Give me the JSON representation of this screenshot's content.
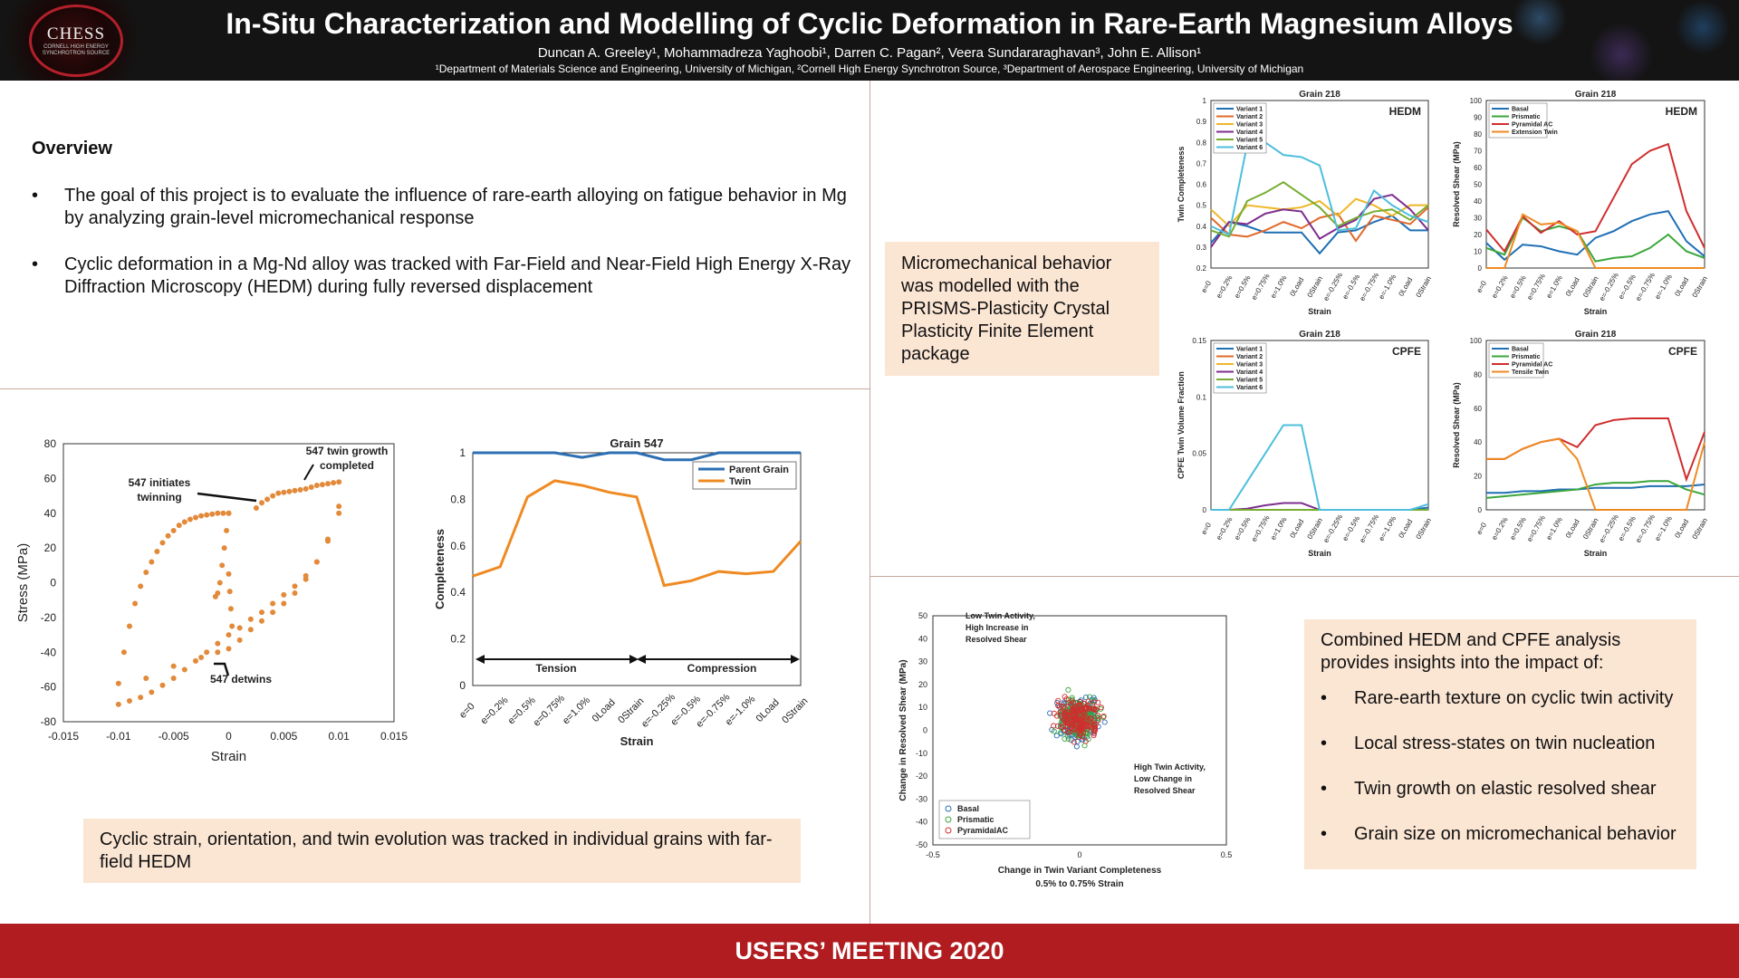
{
  "header": {
    "title": "In-Situ Characterization and Modelling of Cyclic Deformation in Rare-Earth Magnesium Alloys",
    "authors": "Duncan A. Greeley¹, Mohammadreza Yaghoobi¹, Darren C. Pagan², Veera Sundararaghavan³, John E. Allison¹",
    "affiliations": "¹Department of Materials Science and Engineering, University of Michigan, ²Cornell High Energy Synchrotron Source, ³Department of Aerospace Engineering, University of Michigan",
    "logo_name": "CHESS",
    "logo_sub": "CORNELL HIGH ENERGY SYNCHROTRON SOURCE"
  },
  "overview": {
    "title": "Overview",
    "bullets": [
      "The goal of this project is to evaluate the influence of rare-earth alloying on fatigue behavior in Mg by analyzing grain-level micromechanical response",
      "Cyclic deformation in a Mg-Nd alloy was tracked with Far-Field and Near-Field High Energy X-Ray Diffraction Microscopy (HEDM) during fully reversed displacement"
    ]
  },
  "box_hedm": "Cyclic strain, orientation, and twin evolution was tracked in individual grains with far-field HEDM",
  "box_cpfe": "Micromechanical behavior was modelled with the PRISMS-Plasticity Crystal Plasticity Finite Element package",
  "box_combined": {
    "intro": "Combined HEDM and CPFE analysis provides insights into the impact of:",
    "bullets": [
      "Rare-earth texture on cyclic twin activity",
      "Local stress-states on twin nucleation",
      "Twin growth on elastic resolved shear",
      "Grain size on micromechanical behavior"
    ]
  },
  "footer": "USERS’ MEETING 2020",
  "strain_labels": [
    "e=0",
    "e=0.2%",
    "e=0.5%",
    "e=0.75%",
    "e=1.0%",
    "0Load",
    "0Strain",
    "e=-0.25%",
    "e=-0.5%",
    "e=-0.75%",
    "e=-1.0%",
    "0Load",
    "0Strain"
  ],
  "chart_data": [
    {
      "type": "scatter",
      "xlabel": "Strain",
      "ylabel": "Stress (MPa)",
      "xlim": [
        -0.015,
        0.015
      ],
      "ylim": [
        -80,
        80
      ],
      "xticks": [
        "-0.015",
        "-0.01",
        "-0.005",
        "0",
        "0.005",
        "0.01",
        "0.015"
      ],
      "yticks": [
        "80",
        "60",
        "40",
        "20",
        "0",
        "-20",
        "-40",
        "-60",
        "-80"
      ],
      "annotations": [
        "547 twin growth completed",
        "547 initiates twinning",
        "547 detwins"
      ],
      "color": "#e28a3a",
      "series": [
        {
          "x": [
            -0.01,
            -0.0095,
            -0.009,
            -0.0085,
            -0.008,
            -0.0075,
            -0.007,
            -0.0065,
            -0.006,
            -0.0055,
            -0.005,
            -0.0045,
            -0.004,
            -0.0035,
            -0.003,
            -0.0025,
            -0.002,
            -0.0015,
            -0.001,
            -0.0005,
            0
          ],
          "y": [
            -58,
            -40,
            -25,
            -12,
            -2,
            6,
            12,
            18,
            23,
            27,
            30,
            33,
            35,
            36.5,
            37.5,
            38.5,
            39,
            39.5,
            40,
            40,
            40
          ]
        },
        {
          "x": [
            0,
            0.001,
            0.002,
            0.003,
            0.004,
            0.005,
            0.006,
            0.007,
            0.008,
            0.009,
            0.01
          ],
          "y": [
            -38,
            -33,
            -27,
            -22,
            -17,
            -12,
            -6,
            2,
            12,
            25,
            44
          ]
        },
        {
          "x": [
            0.0025,
            0.003,
            0.0035,
            0.004,
            0.0045,
            0.005,
            0.0055,
            0.006,
            0.0065,
            0.007,
            0.0075,
            0.008,
            0.0085,
            0.009,
            0.0095,
            0.01
          ],
          "y": [
            43,
            46,
            48,
            50,
            51.5,
            52,
            52.5,
            53,
            53.5,
            54,
            55,
            56,
            56.5,
            57,
            57.5,
            58
          ]
        },
        {
          "x": [
            0.01,
            0.009,
            0.008,
            0.007,
            0.006,
            0.005,
            0.004,
            0.003,
            0.002,
            0.001,
            0,
            -0.001,
            -0.002,
            -0.003,
            -0.004,
            -0.005,
            -0.006,
            -0.007,
            -0.008,
            -0.009,
            -0.01
          ],
          "y": [
            40,
            24,
            12,
            4,
            -2,
            -7,
            -12,
            -17,
            -21,
            -26,
            -30,
            -35,
            -40,
            -45,
            -50,
            -55,
            -59,
            -63,
            -66,
            -68,
            -70
          ]
        },
        {
          "x": [
            0,
            -0.0002,
            -0.0004,
            -0.0006,
            -0.0008,
            -0.001,
            -0.0012
          ],
          "y": [
            40,
            30,
            20,
            10,
            0,
            -6,
            -8
          ]
        },
        {
          "x": [
            0,
            0.0001,
            0.0002,
            0.0003
          ],
          "y": [
            5,
            -5,
            -15,
            -25
          ]
        },
        {
          "x": [
            -0.0075,
            -0.005,
            -0.0025,
            -0.001
          ],
          "y": [
            -55,
            -48,
            -43,
            -40
          ]
        }
      ]
    },
    {
      "type": "line",
      "title": "Grain 547",
      "xlabel": "Strain",
      "ylabel": "Completeness",
      "ylim": [
        0,
        1
      ],
      "yticks": [
        "0",
        "0.2",
        "0.4",
        "0.6",
        "0.8",
        "1"
      ],
      "annotations": [
        "Tension",
        "Compression"
      ],
      "series": [
        {
          "name": "Parent Grain",
          "color": "#2c6fb3",
          "values": [
            1,
            1,
            1,
            1,
            0.98,
            1,
            1,
            0.97,
            0.97,
            1,
            1,
            1,
            1
          ]
        },
        {
          "name": "Twin",
          "color": "#ef8a22",
          "values": [
            0.47,
            0.51,
            0.81,
            0.88,
            0.86,
            0.83,
            0.81,
            0.43,
            0.45,
            0.49,
            0.48,
            0.49,
            0.62
          ]
        }
      ]
    },
    {
      "type": "line",
      "title": "Grain 218",
      "tag": "HEDM",
      "xlabel": "Strain",
      "ylabel": "Twin Completeness",
      "ylim": [
        0.2,
        1
      ],
      "yticks": [
        "1",
        "0.9",
        "0.8",
        "0.7",
        "0.6",
        "0.5",
        "0.4",
        "0.3",
        "0.2"
      ],
      "series": [
        {
          "name": "Variant 1",
          "color": "#1f6fb4",
          "values": [
            0.32,
            0.42,
            0.4,
            0.37,
            0.37,
            0.37,
            0.27,
            0.37,
            0.38,
            0.42,
            0.45,
            0.38,
            0.38
          ]
        },
        {
          "name": "Variant 2",
          "color": "#e2692a",
          "values": [
            0.44,
            0.36,
            0.35,
            0.38,
            0.42,
            0.39,
            0.44,
            0.46,
            0.33,
            0.45,
            0.43,
            0.41,
            0.49
          ]
        },
        {
          "name": "Variant 3",
          "color": "#efb726",
          "values": [
            0.48,
            0.4,
            0.5,
            0.49,
            0.48,
            0.49,
            0.52,
            0.45,
            0.53,
            0.5,
            0.45,
            0.5,
            0.5
          ]
        },
        {
          "name": "Variant 4",
          "color": "#7e2d8e",
          "values": [
            0.3,
            0.42,
            0.41,
            0.46,
            0.48,
            0.47,
            0.34,
            0.39,
            0.43,
            0.53,
            0.55,
            0.48,
            0.38
          ]
        },
        {
          "name": "Variant 5",
          "color": "#77ac30",
          "values": [
            0.38,
            0.35,
            0.52,
            0.56,
            0.61,
            0.55,
            0.49,
            0.4,
            0.44,
            0.47,
            0.48,
            0.43,
            0.5
          ]
        },
        {
          "name": "Variant 6",
          "color": "#4dbedd",
          "values": [
            0.4,
            0.36,
            0.79,
            0.8,
            0.74,
            0.73,
            0.69,
            0.38,
            0.39,
            0.57,
            0.5,
            0.45,
            0.42
          ]
        }
      ]
    },
    {
      "type": "line",
      "title": "Grain 218",
      "tag": "HEDM",
      "xlabel": "Strain",
      "ylabel": "Resolved Shear (MPa)",
      "ylim": [
        0,
        100
      ],
      "yticks": [
        "100",
        "90",
        "80",
        "70",
        "60",
        "50",
        "40",
        "30",
        "20",
        "10",
        "0"
      ],
      "series": [
        {
          "name": "Basal",
          "color": "#1f6fb4",
          "values": [
            15,
            5,
            14,
            13,
            10,
            8,
            18,
            22,
            28,
            32,
            34,
            16,
            7
          ]
        },
        {
          "name": "Prismatic",
          "color": "#3aa63a",
          "values": [
            12,
            8,
            30,
            22,
            25,
            22,
            4,
            6,
            7,
            12,
            20,
            10,
            6
          ]
        },
        {
          "name": "Pyramidal AC",
          "color": "#d02e2e",
          "values": [
            23,
            10,
            31,
            21,
            28,
            20,
            22,
            42,
            62,
            70,
            74,
            34,
            12
          ]
        },
        {
          "name": "Extension Twin",
          "color": "#ef8a22",
          "values": [
            0,
            0,
            32,
            26,
            27,
            22,
            0,
            0,
            0,
            0,
            0,
            0,
            0
          ]
        }
      ]
    },
    {
      "type": "line",
      "title": "Grain 218",
      "tag": "CPFE",
      "xlabel": "Strain",
      "ylabel": "CPFE Twin Volume Fraction",
      "ylim": [
        0,
        0.15
      ],
      "yticks": [
        "0.15",
        "0.1",
        "0.05",
        "0"
      ],
      "series": [
        {
          "name": "Variant 1",
          "color": "#1f6fb4",
          "values": [
            0,
            0,
            0,
            0,
            0,
            0,
            0,
            0,
            0,
            0,
            0,
            0,
            0.002
          ]
        },
        {
          "name": "Variant 2",
          "color": "#e2692a",
          "values": [
            0,
            0,
            0,
            0,
            0,
            0,
            0,
            0,
            0,
            0,
            0,
            0,
            0
          ]
        },
        {
          "name": "Variant 3",
          "color": "#efb726",
          "values": [
            0,
            0,
            0,
            0,
            0,
            0,
            0,
            0,
            0,
            0,
            0,
            0,
            0
          ]
        },
        {
          "name": "Variant 4",
          "color": "#7e2d8e",
          "values": [
            0,
            0,
            0.001,
            0.004,
            0.006,
            0.006,
            0,
            0,
            0,
            0,
            0,
            0,
            0
          ]
        },
        {
          "name": "Variant 5",
          "color": "#77ac30",
          "values": [
            0,
            0,
            0,
            0,
            0,
            0,
            0,
            0,
            0,
            0,
            0,
            0,
            0
          ]
        },
        {
          "name": "Variant 6",
          "color": "#4dbedd",
          "values": [
            0,
            0,
            0.025,
            0.05,
            0.075,
            0.075,
            0,
            0,
            0,
            0,
            0,
            0,
            0.005
          ]
        }
      ]
    },
    {
      "type": "line",
      "title": "Grain 218",
      "tag": "CPFE",
      "xlabel": "Strain",
      "ylabel": "Resolved Shear (MPa)",
      "ylim": [
        0,
        100
      ],
      "yticks": [
        "100",
        "80",
        "60",
        "40",
        "20",
        "0"
      ],
      "series": [
        {
          "name": "Basal",
          "color": "#1f6fb4",
          "values": [
            10,
            10,
            11,
            11,
            12,
            12,
            13,
            13,
            13,
            14,
            14,
            14,
            15
          ]
        },
        {
          "name": "Prismatic",
          "color": "#3aa63a",
          "values": [
            7,
            8,
            9,
            10,
            11,
            12,
            15,
            16,
            16,
            17,
            17,
            12,
            9
          ]
        },
        {
          "name": "Pyramidal AC",
          "color": "#d02e2e",
          "values": [
            30,
            30,
            36,
            40,
            42,
            37,
            50,
            53,
            54,
            54,
            54,
            18,
            46
          ]
        },
        {
          "name": "Tensile Twin",
          "color": "#ef8a22",
          "values": [
            30,
            30,
            36,
            40,
            42,
            30,
            0,
            0,
            0,
            0,
            0,
            0,
            40
          ]
        }
      ]
    },
    {
      "type": "scatter",
      "xlabel": "Change in Twin Variant Completeness",
      "subtitle": "0.5% to 0.75% Strain",
      "ylabel": "Change in Resolved Shear (MPa)",
      "xlim": [
        -0.5,
        0.5
      ],
      "ylim": [
        -50,
        50
      ],
      "xticks": [
        "-0.5",
        "0",
        "0.5"
      ],
      "yticks": [
        "50",
        "40",
        "30",
        "20",
        "10",
        "0",
        "-10",
        "-20",
        "-30",
        "-40",
        "-50"
      ],
      "annotations": [
        "Low Twin Activity, High Increase in Resolved Shear",
        "High Twin Activity, Low Change in Resolved Shear"
      ],
      "series": [
        {
          "name": "Basal",
          "color": "#2c6fb3"
        },
        {
          "name": "Prismatic",
          "color": "#3aa63a"
        },
        {
          "name": "PyramidalAC",
          "color": "#d02e2e"
        }
      ]
    }
  ]
}
